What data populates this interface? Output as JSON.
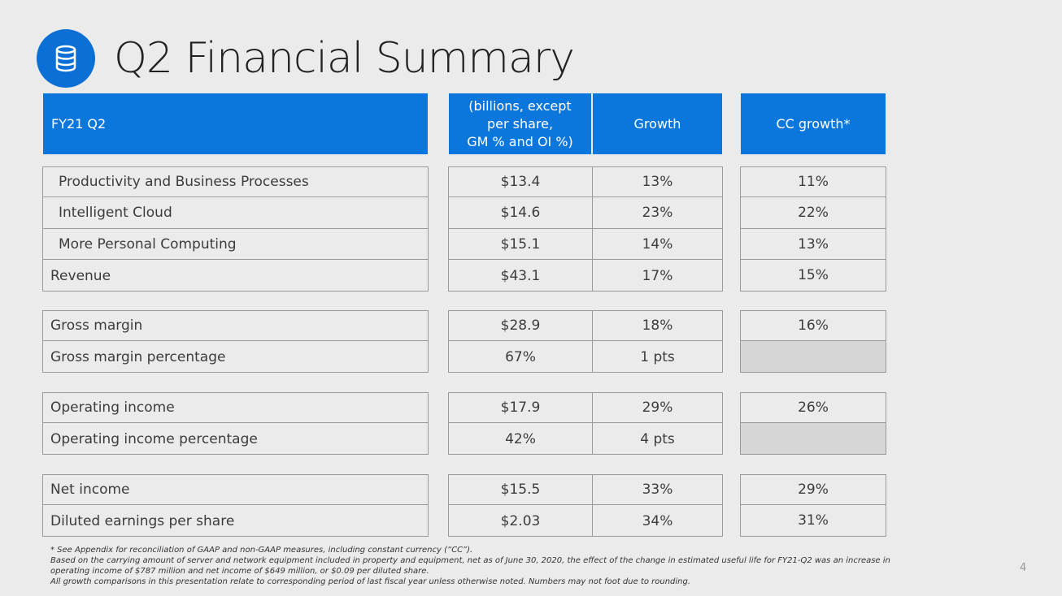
{
  "title": "Q2 Financial Summary",
  "icon": "database-icon",
  "accent_color": "#0b77dd",
  "header": {
    "period": "FY21 Q2",
    "value_col": "(billions, except per share, GM % and OI %)",
    "value_col_lines": [
      "(billions, except",
      "per share,",
      "GM % and OI %)"
    ],
    "growth_col": "Growth",
    "cc_col": "CC growth*"
  },
  "groups": [
    {
      "rows": [
        {
          "label": "Productivity and Business Processes",
          "value": "$13.4",
          "growth": "13%",
          "cc": "11%",
          "indent": true
        },
        {
          "label": "Intelligent Cloud",
          "value": "$14.6",
          "growth": "23%",
          "cc": "22%",
          "indent": true
        },
        {
          "label": "More Personal Computing",
          "value": "$15.1",
          "growth": "14%",
          "cc": "13%",
          "indent": true
        },
        {
          "label": "Revenue",
          "value": "$43.1",
          "growth": "17%",
          "cc": "15%",
          "indent": false
        }
      ]
    },
    {
      "rows": [
        {
          "label": "Gross margin",
          "value": "$28.9",
          "growth": "18%",
          "cc": "16%",
          "indent": false
        },
        {
          "label": "Gross margin percentage",
          "value": "67%",
          "growth": "1 pts",
          "cc": null,
          "indent": false
        }
      ]
    },
    {
      "rows": [
        {
          "label": "Operating income",
          "value": "$17.9",
          "growth": "29%",
          "cc": "26%",
          "indent": false
        },
        {
          "label": "Operating income percentage",
          "value": "42%",
          "growth": "4 pts",
          "cc": null,
          "indent": false
        }
      ]
    },
    {
      "rows": [
        {
          "label": "Net income",
          "value": "$15.5",
          "growth": "33%",
          "cc": "29%",
          "indent": false
        },
        {
          "label": "Diluted earnings per share",
          "value": "$2.03",
          "growth": "34%",
          "cc": "31%",
          "indent": false
        }
      ]
    }
  ],
  "footnotes": [
    "* See Appendix for reconciliation of GAAP and non-GAAP measures, including constant currency (“CC”).",
    "Based on the carrying amount of server and network equipment included in property and equipment, net as of June 30, 2020, the effect of the change in estimated useful life for FY21-Q2 was an increase in operating income of $787 million and net income of $649 million, or $0.09 per diluted share.",
    "All growth comparisons in this presentation relate to corresponding period of last fiscal year unless otherwise noted. Numbers may not foot due to rounding."
  ],
  "page_number": "4"
}
